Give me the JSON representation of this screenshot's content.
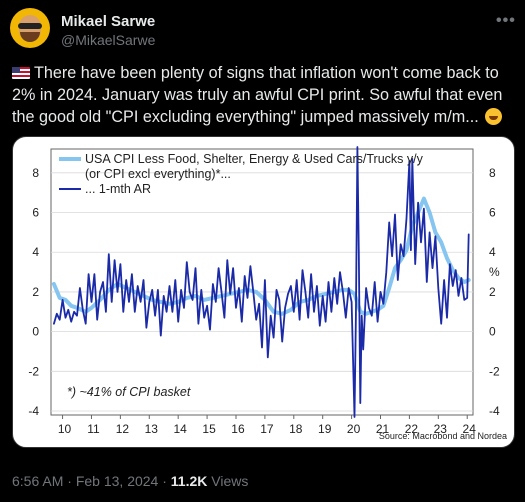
{
  "author": {
    "name": "Mikael Sarwe",
    "handle": "@MikaelSarwe"
  },
  "menu_icon": "more-horizontal-icon",
  "tweet": {
    "flag_icon": "us-flag-icon",
    "text": "There have been plenty of signs that inflation won't come back to 2% in 2024. January was truly an awful CPI print. So awful that even the good old \"CPI excluding everything\" jumped massively m/m...",
    "emoji_icon": "rolling-on-floor-laughing-icon"
  },
  "meta": {
    "time": "6:56 AM",
    "date": "Feb 13, 2024",
    "views_count": "11.2K",
    "views_label": "Views"
  },
  "chart_data": {
    "type": "line",
    "legend": [
      {
        "label": "USA CPI Less Food, Shelter, Energy & Used Cars/Trucks y/y",
        "label2": "(or CPI excl everything)*...",
        "color": "#86c5f0"
      },
      {
        "label": "... 1-mth AR",
        "color": "#1a2aa8"
      }
    ],
    "annotation": "*) ~41% of CPI basket",
    "source": "Source: Macrobond and Nordea",
    "x_ticks": [
      "10",
      "11",
      "12",
      "13",
      "14",
      "15",
      "16",
      "17",
      "18",
      "19",
      "20",
      "21",
      "22",
      "23",
      "24"
    ],
    "y_ticks_left": [
      "8",
      "6",
      "4",
      "2",
      "0",
      "-2",
      "-4"
    ],
    "y_ticks_right": [
      "8",
      "6",
      "4",
      "%",
      "2",
      "0",
      "-2",
      "-4"
    ],
    "ylim": [
      -4.2,
      9.2
    ],
    "xlim": [
      2009.6,
      2024.2
    ],
    "series": [
      {
        "name": "USA CPI Less Food, Shelter, Energy & Used Cars/Trucks y/y",
        "color": "#86c5f0",
        "points": [
          [
            2009.7,
            2.4
          ],
          [
            2009.9,
            1.7
          ],
          [
            2010.1,
            1.6
          ],
          [
            2010.3,
            1.3
          ],
          [
            2010.5,
            1.2
          ],
          [
            2010.8,
            1.0
          ],
          [
            2011.0,
            1.2
          ],
          [
            2011.3,
            1.6
          ],
          [
            2011.6,
            2.1
          ],
          [
            2011.9,
            2.4
          ],
          [
            2012.2,
            2.2
          ],
          [
            2012.5,
            2.0
          ],
          [
            2012.8,
            1.8
          ],
          [
            2013.1,
            1.6
          ],
          [
            2013.4,
            1.5
          ],
          [
            2013.7,
            1.4
          ],
          [
            2014.0,
            1.5
          ],
          [
            2014.3,
            1.7
          ],
          [
            2014.6,
            1.8
          ],
          [
            2014.9,
            1.6
          ],
          [
            2015.2,
            1.7
          ],
          [
            2015.5,
            1.8
          ],
          [
            2015.8,
            1.9
          ],
          [
            2016.1,
            2.0
          ],
          [
            2016.4,
            2.1
          ],
          [
            2016.7,
            2.0
          ],
          [
            2017.0,
            1.6
          ],
          [
            2017.3,
            1.0
          ],
          [
            2017.6,
            0.9
          ],
          [
            2017.9,
            1.1
          ],
          [
            2018.2,
            1.5
          ],
          [
            2018.5,
            1.6
          ],
          [
            2018.8,
            1.8
          ],
          [
            2019.1,
            1.9
          ],
          [
            2019.4,
            2.0
          ],
          [
            2019.7,
            2.1
          ],
          [
            2019.9,
            2.1
          ],
          [
            2020.1,
            1.9
          ],
          [
            2020.3,
            1.0
          ],
          [
            2020.5,
            0.9
          ],
          [
            2020.7,
            1.0
          ],
          [
            2020.9,
            1.1
          ],
          [
            2021.1,
            1.3
          ],
          [
            2021.3,
            2.2
          ],
          [
            2021.5,
            3.2
          ],
          [
            2021.7,
            3.6
          ],
          [
            2021.9,
            4.1
          ],
          [
            2022.1,
            5.3
          ],
          [
            2022.3,
            6.0
          ],
          [
            2022.5,
            6.7
          ],
          [
            2022.7,
            6.0
          ],
          [
            2022.9,
            5.0
          ],
          [
            2023.1,
            4.5
          ],
          [
            2023.3,
            3.7
          ],
          [
            2023.5,
            3.1
          ],
          [
            2023.7,
            2.7
          ],
          [
            2023.9,
            2.5
          ],
          [
            2024.05,
            2.6
          ]
        ]
      },
      {
        "name": "... 1-mth AR",
        "color": "#1a2aa8",
        "points": [
          [
            2009.7,
            0.4
          ],
          [
            2009.8,
            0.9
          ],
          [
            2009.9,
            0.6
          ],
          [
            2010.0,
            1.6
          ],
          [
            2010.1,
            0.7
          ],
          [
            2010.2,
            1.1
          ],
          [
            2010.3,
            0.5
          ],
          [
            2010.4,
            1.0
          ],
          [
            2010.5,
            0.8
          ],
          [
            2010.6,
            2.2
          ],
          [
            2010.7,
            1.1
          ],
          [
            2010.8,
            0.4
          ],
          [
            2010.9,
            2.9
          ],
          [
            2011.0,
            1.5
          ],
          [
            2011.1,
            2.9
          ],
          [
            2011.2,
            0.6
          ],
          [
            2011.3,
            2.0
          ],
          [
            2011.4,
            2.5
          ],
          [
            2011.5,
            1.0
          ],
          [
            2011.6,
            3.9
          ],
          [
            2011.7,
            1.5
          ],
          [
            2011.8,
            3.6
          ],
          [
            2011.9,
            2.0
          ],
          [
            2012.0,
            3.4
          ],
          [
            2012.1,
            1.0
          ],
          [
            2012.2,
            2.6
          ],
          [
            2012.3,
            1.5
          ],
          [
            2012.4,
            2.9
          ],
          [
            2012.5,
            1.0
          ],
          [
            2012.6,
            2.3
          ],
          [
            2012.7,
            1.5
          ],
          [
            2012.8,
            2.6
          ],
          [
            2012.9,
            0.2
          ],
          [
            2013.0,
            1.5
          ],
          [
            2013.1,
            2.1
          ],
          [
            2013.2,
            0.8
          ],
          [
            2013.3,
            2.1
          ],
          [
            2013.4,
            -0.2
          ],
          [
            2013.5,
            1.8
          ],
          [
            2013.6,
            1.0
          ],
          [
            2013.7,
            2.3
          ],
          [
            2013.8,
            1.0
          ],
          [
            2013.9,
            2.6
          ],
          [
            2014.0,
            0.5
          ],
          [
            2014.1,
            2.1
          ],
          [
            2014.2,
            1.2
          ],
          [
            2014.3,
            3.5
          ],
          [
            2014.4,
            2.0
          ],
          [
            2014.5,
            1.6
          ],
          [
            2014.6,
            3.2
          ],
          [
            2014.7,
            0.4
          ],
          [
            2014.8,
            2.1
          ],
          [
            2014.9,
            0.7
          ],
          [
            2015.0,
            1.3
          ],
          [
            2015.1,
            0.1
          ],
          [
            2015.2,
            2.4
          ],
          [
            2015.3,
            1.5
          ],
          [
            2015.4,
            3.2
          ],
          [
            2015.5,
            2.0
          ],
          [
            2015.6,
            0.7
          ],
          [
            2015.7,
            3.6
          ],
          [
            2015.8,
            1.9
          ],
          [
            2015.9,
            3.2
          ],
          [
            2016.0,
            1.2
          ],
          [
            2016.1,
            2.2
          ],
          [
            2016.2,
            0.5
          ],
          [
            2016.3,
            2.8
          ],
          [
            2016.4,
            1.7
          ],
          [
            2016.5,
            3.3
          ],
          [
            2016.6,
            2.0
          ],
          [
            2016.7,
            0.6
          ],
          [
            2016.8,
            1.4
          ],
          [
            2016.9,
            -0.8
          ],
          [
            2017.0,
            2.6
          ],
          [
            2017.1,
            -1.3
          ],
          [
            2017.2,
            0.8
          ],
          [
            2017.3,
            -0.3
          ],
          [
            2017.4,
            2.1
          ],
          [
            2017.5,
            1.6
          ],
          [
            2017.6,
            -0.5
          ],
          [
            2017.7,
            1.2
          ],
          [
            2017.8,
            1.9
          ],
          [
            2017.9,
            2.3
          ],
          [
            2018.0,
            1.0
          ],
          [
            2018.1,
            2.6
          ],
          [
            2018.2,
            0.6
          ],
          [
            2018.3,
            3.1
          ],
          [
            2018.4,
            2.0
          ],
          [
            2018.5,
            0.7
          ],
          [
            2018.6,
            2.9
          ],
          [
            2018.7,
            1.0
          ],
          [
            2018.8,
            2.3
          ],
          [
            2018.9,
            0.3
          ],
          [
            2019.0,
            1.8
          ],
          [
            2019.1,
            0.5
          ],
          [
            2019.2,
            2.5
          ],
          [
            2019.3,
            1.0
          ],
          [
            2019.4,
            2.7
          ],
          [
            2019.5,
            1.4
          ],
          [
            2019.6,
            3.0
          ],
          [
            2019.7,
            2.0
          ],
          [
            2019.8,
            0.7
          ],
          [
            2019.9,
            2.2
          ],
          [
            2020.0,
            1.5
          ],
          [
            2020.1,
            -4.3
          ],
          [
            2020.15,
            0.8
          ],
          [
            2020.2,
            9.3
          ],
          [
            2020.25,
            4.0
          ],
          [
            2020.3,
            -3.6
          ],
          [
            2020.35,
            0.8
          ],
          [
            2020.4,
            -0.9
          ],
          [
            2020.5,
            2.2
          ],
          [
            2020.6,
            1.2
          ],
          [
            2020.7,
            0.8
          ],
          [
            2020.8,
            2.5
          ],
          [
            2020.9,
            0.5
          ],
          [
            2021.0,
            2.0
          ],
          [
            2021.1,
            1.4
          ],
          [
            2021.2,
            3.0
          ],
          [
            2021.3,
            5.5
          ],
          [
            2021.4,
            3.8
          ],
          [
            2021.5,
            5.9
          ],
          [
            2021.6,
            2.6
          ],
          [
            2021.7,
            4.4
          ],
          [
            2021.8,
            3.8
          ],
          [
            2021.9,
            5.7
          ],
          [
            2022.0,
            8.6
          ],
          [
            2022.05,
            4.1
          ],
          [
            2022.1,
            8.7
          ],
          [
            2022.2,
            3.4
          ],
          [
            2022.3,
            6.5
          ],
          [
            2022.4,
            4.5
          ],
          [
            2022.5,
            6.2
          ],
          [
            2022.6,
            2.5
          ],
          [
            2022.7,
            5.0
          ],
          [
            2022.8,
            3.2
          ],
          [
            2022.9,
            4.8
          ],
          [
            2023.0,
            2.2
          ],
          [
            2023.1,
            0.4
          ],
          [
            2023.2,
            2.6
          ],
          [
            2023.3,
            0.7
          ],
          [
            2023.4,
            3.4
          ],
          [
            2023.5,
            2.3
          ],
          [
            2023.6,
            3.1
          ],
          [
            2023.7,
            1.8
          ],
          [
            2023.8,
            2.7
          ],
          [
            2023.9,
            1.6
          ],
          [
            2024.0,
            1.7
          ],
          [
            2024.05,
            4.9
          ]
        ]
      }
    ]
  }
}
